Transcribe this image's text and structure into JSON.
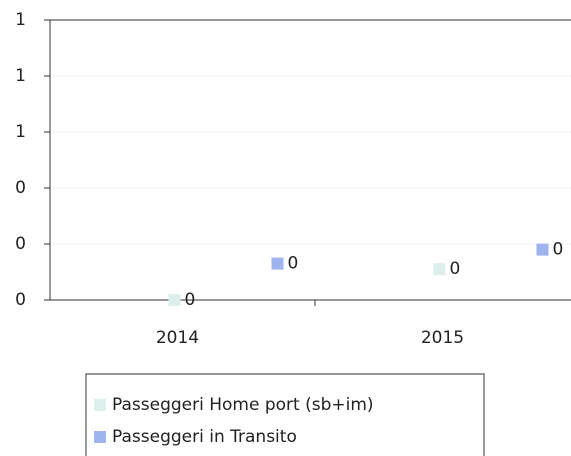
{
  "chart_data": {
    "type": "scatter",
    "categories": [
      "2014",
      "2015"
    ],
    "series": [
      {
        "name": "Passeggeri Home port (sb+im)",
        "color": "#dcefed",
        "values": [
          0,
          0.11
        ],
        "value_labels": [
          "0",
          "0"
        ]
      },
      {
        "name": "Passeggeri in Transito",
        "color": "#9fb3ee",
        "values": [
          0.13,
          0.18
        ],
        "value_labels": [
          "0",
          "0"
        ]
      }
    ],
    "ylim": [
      0,
      1
    ],
    "yticks": [
      0,
      {
        "value": 0.2,
        "label": "0"
      },
      {
        "value": 0.4,
        "label": "0"
      },
      {
        "value": 0.6,
        "label": "1"
      },
      {
        "value": 0.8,
        "label": "1"
      },
      1
    ],
    "grid": true
  }
}
